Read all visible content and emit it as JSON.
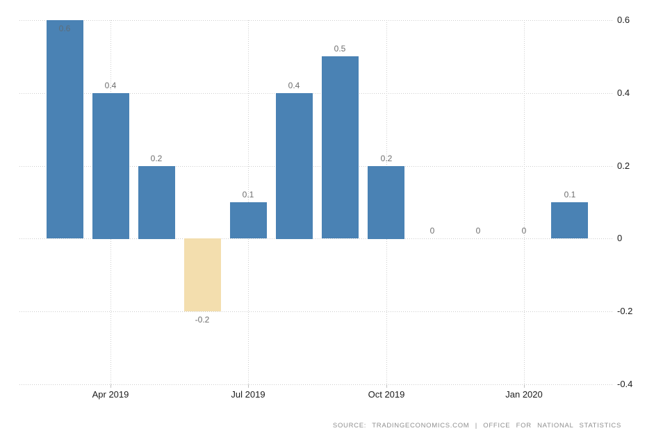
{
  "chart_data": {
    "type": "bar",
    "title": "",
    "values": [
      0.6,
      0.4,
      0.2,
      -0.2,
      0.1,
      0.4,
      0.5,
      0.2,
      0,
      0,
      0,
      0.1
    ],
    "value_labels": [
      "0.6",
      "0.4",
      "0.2",
      "-0.2",
      "0.1",
      "0.4",
      "0.5",
      "0.2",
      "0",
      "0",
      "0",
      "0.1"
    ],
    "x_ticks": [
      {
        "label": "Apr 2019",
        "index": 1
      },
      {
        "label": "Jul 2019",
        "index": 4
      },
      {
        "label": "Oct 2019",
        "index": 7
      },
      {
        "label": "Jan 2020",
        "index": 10
      }
    ],
    "y_ticks": [
      0.6,
      0.4,
      0.2,
      0,
      -0.2,
      -0.4
    ],
    "y_tick_labels": [
      "0.6",
      "0.4",
      "0.2",
      "0",
      "-0.2",
      "-0.4"
    ],
    "ylim": [
      -0.4,
      0.6
    ],
    "grid": "dotted",
    "legend": null,
    "colors": {
      "positive_bar": "#4a82b4",
      "negative_bar": "#f3deae",
      "gridline": "#cccccc",
      "tick": "#c0c0c0",
      "value_label": "#6e6e6e",
      "value_label_inside": "#5d6d7a",
      "axis_label": "#1a1a1a",
      "source_text": "#8f8f8f"
    }
  },
  "footer": {
    "source_text": "SOURCE: TRADINGECONOMICS.COM | OFFICE FOR NATIONAL STATISTICS"
  }
}
